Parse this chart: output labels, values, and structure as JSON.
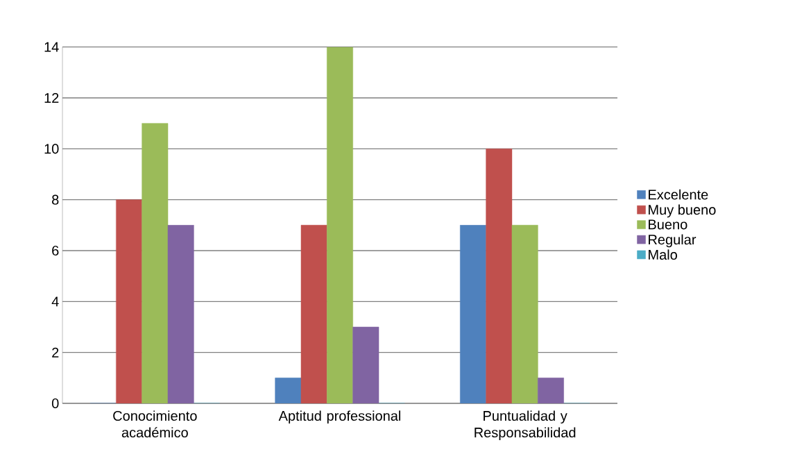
{
  "chart_data": {
    "type": "bar",
    "categories": [
      "Conocimiento académico",
      "Aptitud professional",
      "Puntualidad y Responsabilidad"
    ],
    "series": [
      {
        "name": "Excelente",
        "color": "#4f81bd",
        "values": [
          0,
          1,
          7
        ]
      },
      {
        "name": "Muy bueno",
        "color": "#c0504d",
        "values": [
          8,
          7,
          10
        ]
      },
      {
        "name": "Bueno",
        "color": "#9bbb59",
        "values": [
          11,
          14,
          7
        ]
      },
      {
        "name": "Regular",
        "color": "#8064a2",
        "values": [
          7,
          3,
          1
        ]
      },
      {
        "name": "Malo",
        "color": "#4bacc6",
        "values": [
          0,
          0,
          0
        ]
      }
    ],
    "ylim": [
      0,
      14
    ],
    "yticks": [
      0,
      2,
      4,
      6,
      8,
      10,
      12,
      14
    ],
    "grid": "y",
    "legend": "right"
  }
}
